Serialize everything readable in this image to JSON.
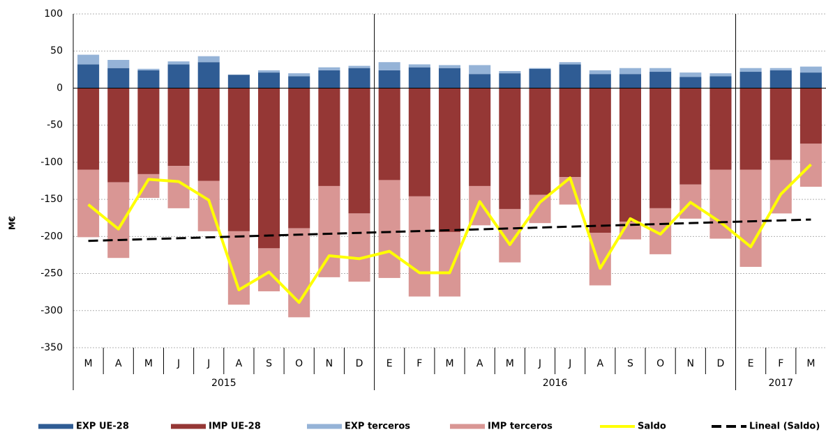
{
  "chart_data": {
    "type": "bar",
    "y_label": "M€",
    "groups": [
      {
        "label": "2015",
        "categories": [
          "M",
          "A",
          "M",
          "J",
          "J",
          "A",
          "S",
          "O",
          "N",
          "D"
        ]
      },
      {
        "label": "2016",
        "categories": [
          "E",
          "F",
          "M",
          "A",
          "M",
          "J",
          "J",
          "A",
          "S",
          "O",
          "N",
          "D"
        ]
      },
      {
        "label": "2017",
        "categories": [
          "E",
          "F",
          "M"
        ]
      }
    ],
    "ylim": [
      -350,
      100
    ],
    "yticks": [
      -350,
      -300,
      -250,
      -200,
      -150,
      -100,
      -50,
      0,
      50,
      100
    ],
    "grid": true,
    "series": [
      {
        "name": "EXP UE-28",
        "type": "bar",
        "color": "#2f5c94",
        "values": [
          32,
          27,
          24,
          32,
          35,
          18,
          21,
          16,
          24,
          27,
          24,
          28,
          27,
          19,
          20,
          26,
          32,
          19,
          19,
          22,
          15,
          16,
          22,
          24,
          21
        ]
      },
      {
        "name": "IMP UE-28",
        "type": "bar",
        "color": "#953735",
        "values": [
          -110,
          -127,
          -116,
          -105,
          -125,
          -193,
          -216,
          -189,
          -132,
          -169,
          -124,
          -146,
          -194,
          -132,
          -163,
          -144,
          -120,
          -195,
          -180,
          -162,
          -130,
          -110,
          -110,
          -97,
          -75
        ]
      },
      {
        "name": "EXP terceros",
        "type": "bar",
        "color": "#95b3d7",
        "values": [
          13,
          11,
          2,
          4,
          8,
          0,
          3,
          4,
          4,
          3,
          11,
          4,
          4,
          12,
          3,
          1,
          3,
          5,
          8,
          5,
          6,
          4,
          5,
          3,
          8
        ]
      },
      {
        "name": "IMP terceros",
        "type": "bar",
        "color": "#d99694",
        "values": [
          -91,
          -102,
          -32,
          -57,
          -68,
          -99,
          -58,
          -120,
          -123,
          -92,
          -132,
          -135,
          -87,
          -53,
          -72,
          -38,
          -37,
          -71,
          -24,
          -62,
          -46,
          -93,
          -131,
          -72,
          -58
        ]
      },
      {
        "name": "Saldo",
        "type": "line",
        "color": "#ffff00",
        "values": [
          -157,
          -190,
          -123,
          -126,
          -151,
          -272,
          -248,
          -289,
          -226,
          -230,
          -220,
          -249,
          -249,
          -153,
          -211,
          -154,
          -121,
          -243,
          -176,
          -197,
          -154,
          -181,
          -214,
          -143,
          -103
        ]
      },
      {
        "name": "Lineal (Saldo)",
        "type": "line",
        "color": "#000000",
        "dashed": true,
        "values": [
          -206,
          -204.8,
          -203.6,
          -202.4,
          -201.2,
          -200,
          -198.8,
          -197.6,
          -196.4,
          -195.2,
          -194,
          -192.8,
          -191.6,
          -190.4,
          -189.2,
          -188,
          -186.8,
          -185.6,
          -184.4,
          -183.2,
          -182,
          -180.8,
          -179.6,
          -178.4,
          -177.2
        ]
      }
    ]
  }
}
